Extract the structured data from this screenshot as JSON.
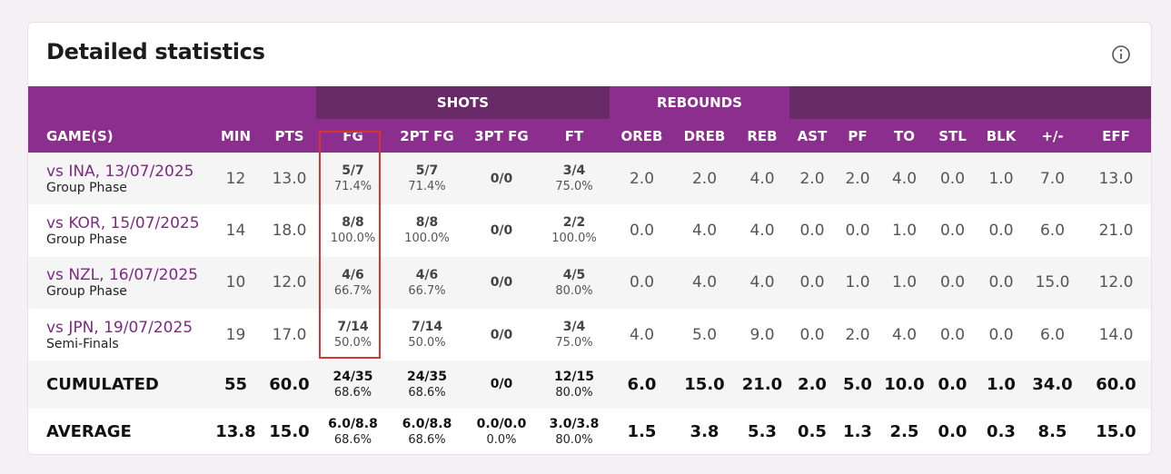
{
  "title": "Detailed statistics",
  "groups": [
    "SHOTS",
    "REBOUNDS"
  ],
  "columns": [
    "GAME(S)",
    "MIN",
    "PTS",
    "FG",
    "2PT FG",
    "3PT FG",
    "FT",
    "OREB",
    "DREB",
    "REB",
    "AST",
    "PF",
    "TO",
    "STL",
    "BLK",
    "+/-",
    "EFF"
  ],
  "rows": [
    {
      "game": "vs INA, 13/07/2025",
      "phase": "Group Phase",
      "cells": [
        "12",
        "13.0",
        [
          "5/7",
          "71.4%"
        ],
        [
          "5/7",
          "71.4%"
        ],
        [
          "0/0"
        ],
        [
          "3/4",
          "75.0%"
        ],
        "2.0",
        "2.0",
        "4.0",
        "2.0",
        "2.0",
        "4.0",
        "0.0",
        "1.0",
        "7.0",
        "13.0"
      ]
    },
    {
      "game": "vs KOR, 15/07/2025",
      "phase": "Group Phase",
      "cells": [
        "14",
        "18.0",
        [
          "8/8",
          "100.0%"
        ],
        [
          "8/8",
          "100.0%"
        ],
        [
          "0/0"
        ],
        [
          "2/2",
          "100.0%"
        ],
        "0.0",
        "4.0",
        "4.0",
        "0.0",
        "0.0",
        "1.0",
        "0.0",
        "0.0",
        "6.0",
        "21.0"
      ]
    },
    {
      "game": "vs NZL, 16/07/2025",
      "phase": "Group Phase",
      "cells": [
        "10",
        "12.0",
        [
          "4/6",
          "66.7%"
        ],
        [
          "4/6",
          "66.7%"
        ],
        [
          "0/0"
        ],
        [
          "4/5",
          "80.0%"
        ],
        "0.0",
        "4.0",
        "4.0",
        "0.0",
        "1.0",
        "1.0",
        "0.0",
        "0.0",
        "15.0",
        "12.0"
      ]
    },
    {
      "game": "vs JPN, 19/07/2025",
      "phase": "Semi-Finals",
      "cells": [
        "19",
        "17.0",
        [
          "7/14",
          "50.0%"
        ],
        [
          "7/14",
          "50.0%"
        ],
        [
          "0/0"
        ],
        [
          "3/4",
          "75.0%"
        ],
        "4.0",
        "5.0",
        "9.0",
        "0.0",
        "2.0",
        "4.0",
        "0.0",
        "0.0",
        "6.0",
        "14.0"
      ]
    }
  ],
  "totals": [
    {
      "label": "CUMULATED",
      "cells": [
        "55",
        "60.0",
        [
          "24/35",
          "68.6%"
        ],
        [
          "24/35",
          "68.6%"
        ],
        [
          "0/0"
        ],
        [
          "12/15",
          "80.0%"
        ],
        "6.0",
        "15.0",
        "21.0",
        "2.0",
        "5.0",
        "10.0",
        "0.0",
        "1.0",
        "34.0",
        "60.0"
      ]
    },
    {
      "label": "AVERAGE",
      "cells": [
        "13.8",
        "15.0",
        [
          "6.0/8.8",
          "68.6%"
        ],
        [
          "6.0/8.8",
          "68.6%"
        ],
        [
          "0.0/0.0",
          "0.0%"
        ],
        [
          "3.0/3.8",
          "80.0%"
        ],
        "1.5",
        "3.8",
        "5.3",
        "0.5",
        "1.3",
        "2.5",
        "0.0",
        "0.3",
        "8.5",
        "15.0"
      ]
    }
  ]
}
